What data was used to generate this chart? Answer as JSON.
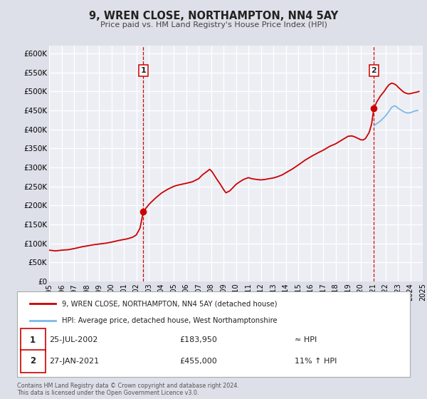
{
  "title": "9, WREN CLOSE, NORTHAMPTON, NN4 5AY",
  "subtitle": "Price paid vs. HM Land Registry's House Price Index (HPI)",
  "legend_line1": "9, WREN CLOSE, NORTHAMPTON, NN4 5AY (detached house)",
  "legend_line2": "HPI: Average price, detached house, West Northamptonshire",
  "footnote1": "Contains HM Land Registry data © Crown copyright and database right 2024.",
  "footnote2": "This data is licensed under the Open Government Licence v3.0.",
  "sale1_label": "1",
  "sale1_date": "25-JUL-2002",
  "sale1_price": "£183,950",
  "sale1_hpi": "≈ HPI",
  "sale2_label": "2",
  "sale2_date": "27-JAN-2021",
  "sale2_price": "£455,000",
  "sale2_hpi": "11% ↑ HPI",
  "hpi_line_color": "#7cb9e8",
  "price_line_color": "#cc0000",
  "bg_color": "#dde0e8",
  "plot_bg_color": "#eceef4",
  "grid_color": "#ffffff",
  "box_bg": "#ffffff",
  "ylim": [
    0,
    620000
  ],
  "yticks": [
    0,
    50000,
    100000,
    150000,
    200000,
    250000,
    300000,
    350000,
    400000,
    450000,
    500000,
    550000,
    600000
  ],
  "ytick_labels": [
    "£0",
    "£50K",
    "£100K",
    "£150K",
    "£200K",
    "£250K",
    "£300K",
    "£350K",
    "£400K",
    "£450K",
    "£500K",
    "£550K",
    "£600K"
  ],
  "xtick_years": [
    1995,
    1996,
    1997,
    1998,
    1999,
    2000,
    2001,
    2002,
    2003,
    2004,
    2005,
    2006,
    2007,
    2008,
    2009,
    2010,
    2011,
    2012,
    2013,
    2014,
    2015,
    2016,
    2017,
    2018,
    2019,
    2020,
    2021,
    2022,
    2023,
    2024,
    2025
  ],
  "sale1_x": 2002.57,
  "sale1_y": 183950,
  "sale2_x": 2021.07,
  "sale2_y": 455000,
  "red_anchors": [
    [
      1995.0,
      82000
    ],
    [
      1995.5,
      80000
    ],
    [
      1996.0,
      82000
    ],
    [
      1996.5,
      83000
    ],
    [
      1997.0,
      86000
    ],
    [
      1997.5,
      90000
    ],
    [
      1998.0,
      93000
    ],
    [
      1998.5,
      96000
    ],
    [
      1999.0,
      98000
    ],
    [
      1999.5,
      100000
    ],
    [
      2000.0,
      103000
    ],
    [
      2000.5,
      107000
    ],
    [
      2001.0,
      110000
    ],
    [
      2001.3,
      112000
    ],
    [
      2001.7,
      116000
    ],
    [
      2002.0,
      122000
    ],
    [
      2002.3,
      140000
    ],
    [
      2002.57,
      183950
    ],
    [
      2003.0,
      202000
    ],
    [
      2003.5,
      218000
    ],
    [
      2004.0,
      232000
    ],
    [
      2004.5,
      242000
    ],
    [
      2005.0,
      250000
    ],
    [
      2005.3,
      253000
    ],
    [
      2005.7,
      256000
    ],
    [
      2006.0,
      258000
    ],
    [
      2006.5,
      262000
    ],
    [
      2007.0,
      270000
    ],
    [
      2007.3,
      280000
    ],
    [
      2007.7,
      290000
    ],
    [
      2007.9,
      295000
    ],
    [
      2008.1,
      288000
    ],
    [
      2008.4,
      272000
    ],
    [
      2008.7,
      258000
    ],
    [
      2009.0,
      242000
    ],
    [
      2009.2,
      233000
    ],
    [
      2009.5,
      238000
    ],
    [
      2009.8,
      248000
    ],
    [
      2010.0,
      255000
    ],
    [
      2010.3,
      262000
    ],
    [
      2010.6,
      268000
    ],
    [
      2010.9,
      272000
    ],
    [
      2011.0,
      273000
    ],
    [
      2011.3,
      270000
    ],
    [
      2011.7,
      268000
    ],
    [
      2012.0,
      267000
    ],
    [
      2012.3,
      268000
    ],
    [
      2012.6,
      270000
    ],
    [
      2013.0,
      272000
    ],
    [
      2013.3,
      275000
    ],
    [
      2013.7,
      280000
    ],
    [
      2014.0,
      286000
    ],
    [
      2014.5,
      295000
    ],
    [
      2015.0,
      306000
    ],
    [
      2015.5,
      318000
    ],
    [
      2016.0,
      328000
    ],
    [
      2016.5,
      337000
    ],
    [
      2017.0,
      345000
    ],
    [
      2017.5,
      355000
    ],
    [
      2018.0,
      362000
    ],
    [
      2018.3,
      368000
    ],
    [
      2018.5,
      372000
    ],
    [
      2018.8,
      378000
    ],
    [
      2019.0,
      382000
    ],
    [
      2019.3,
      383000
    ],
    [
      2019.5,
      381000
    ],
    [
      2019.7,
      378000
    ],
    [
      2019.9,
      375000
    ],
    [
      2020.0,
      373000
    ],
    [
      2020.2,
      372000
    ],
    [
      2020.4,
      376000
    ],
    [
      2020.7,
      392000
    ],
    [
      2020.9,
      415000
    ],
    [
      2021.07,
      455000
    ],
    [
      2021.3,
      472000
    ],
    [
      2021.6,
      488000
    ],
    [
      2021.9,
      500000
    ],
    [
      2022.1,
      510000
    ],
    [
      2022.3,
      518000
    ],
    [
      2022.5,
      522000
    ],
    [
      2022.7,
      520000
    ],
    [
      2022.9,
      516000
    ],
    [
      2023.0,
      512000
    ],
    [
      2023.2,
      506000
    ],
    [
      2023.4,
      500000
    ],
    [
      2023.6,
      496000
    ],
    [
      2023.8,
      494000
    ],
    [
      2024.0,
      494000
    ],
    [
      2024.2,
      496000
    ],
    [
      2024.5,
      498000
    ],
    [
      2024.7,
      500000
    ]
  ],
  "blue_anchors": [
    [
      2021.07,
      410000
    ],
    [
      2021.3,
      415000
    ],
    [
      2021.6,
      422000
    ],
    [
      2022.0,
      435000
    ],
    [
      2022.3,
      448000
    ],
    [
      2022.5,
      458000
    ],
    [
      2022.7,
      462000
    ],
    [
      2022.9,
      460000
    ],
    [
      2023.0,
      456000
    ],
    [
      2023.3,
      450000
    ],
    [
      2023.5,
      446000
    ],
    [
      2023.8,
      443000
    ],
    [
      2024.0,
      444000
    ],
    [
      2024.3,
      448000
    ],
    [
      2024.6,
      450000
    ]
  ]
}
